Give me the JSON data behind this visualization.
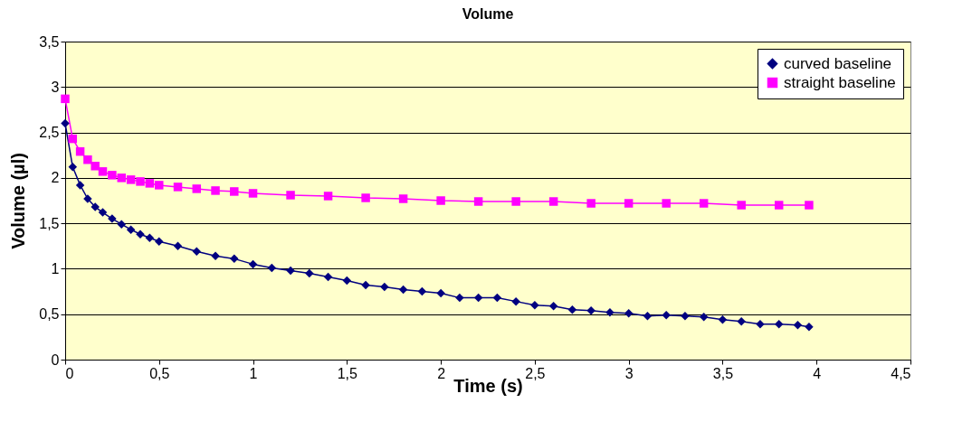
{
  "chart_data": {
    "type": "line",
    "title": "Volume",
    "xlabel": "Time (s)",
    "ylabel": "Volume (µl)",
    "xlim": [
      0,
      4.5
    ],
    "xticks": [
      0,
      {
        "value": 0.5,
        "label": "0,5"
      },
      1,
      {
        "value": 1.5,
        "label": "1,5"
      },
      2,
      {
        "value": 2.5,
        "label": "2,5"
      },
      3,
      {
        "value": 3.5,
        "label": "3,5"
      },
      4,
      {
        "value": 4.5,
        "label": "4,5"
      }
    ],
    "ylim": [
      0,
      3.5
    ],
    "yticks": [
      0,
      {
        "value": 0.5,
        "label": "0,5"
      },
      1,
      {
        "value": 1.5,
        "label": "1,5"
      },
      2,
      {
        "value": 2.5,
        "label": "2,5"
      },
      3,
      {
        "value": 3.5,
        "label": "3,5"
      }
    ],
    "grid": "y",
    "legend": "top right",
    "line_style": "solid",
    "series": [
      {
        "name": "curved baseline",
        "color": "#000080",
        "marker": "diamond",
        "x": [
          0,
          0.04,
          0.08,
          0.12,
          0.16,
          0.2,
          0.25,
          0.3,
          0.35,
          0.4,
          0.45,
          0.5,
          0.6,
          0.7,
          0.8,
          0.9,
          1.0,
          1.1,
          1.2,
          1.3,
          1.4,
          1.5,
          1.6,
          1.7,
          1.8,
          1.9,
          2.0,
          2.1,
          2.2,
          2.3,
          2.4,
          2.5,
          2.6,
          2.7,
          2.8,
          2.9,
          3.0,
          3.1,
          3.2,
          3.3,
          3.4,
          3.5,
          3.6,
          3.7,
          3.8,
          3.9,
          3.96
        ],
        "values": [
          2.6,
          2.12,
          1.92,
          1.77,
          1.68,
          1.62,
          1.55,
          1.49,
          1.43,
          1.38,
          1.34,
          1.3,
          1.25,
          1.19,
          1.14,
          1.11,
          1.05,
          1.01,
          0.98,
          0.95,
          0.91,
          0.87,
          0.82,
          0.8,
          0.77,
          0.75,
          0.73,
          0.68,
          0.68,
          0.68,
          0.64,
          0.6,
          0.59,
          0.55,
          0.54,
          0.52,
          0.51,
          0.48,
          0.49,
          0.48,
          0.47,
          0.44,
          0.42,
          0.39,
          0.39,
          0.38,
          0.36
        ]
      },
      {
        "name": "straight baseline",
        "color": "#ff00ff",
        "marker": "square",
        "x": [
          0,
          0.04,
          0.08,
          0.12,
          0.16,
          0.2,
          0.25,
          0.3,
          0.35,
          0.4,
          0.45,
          0.5,
          0.6,
          0.7,
          0.8,
          0.9,
          1.0,
          1.2,
          1.4,
          1.6,
          1.8,
          2.0,
          2.2,
          2.4,
          2.6,
          2.8,
          3.0,
          3.2,
          3.4,
          3.6,
          3.8,
          3.96
        ],
        "values": [
          2.87,
          2.43,
          2.29,
          2.2,
          2.13,
          2.07,
          2.03,
          2.0,
          1.98,
          1.96,
          1.94,
          1.92,
          1.9,
          1.88,
          1.86,
          1.85,
          1.83,
          1.81,
          1.8,
          1.78,
          1.77,
          1.75,
          1.74,
          1.74,
          1.74,
          1.72,
          1.72,
          1.72,
          1.72,
          1.7,
          1.7,
          1.7
        ]
      }
    ]
  }
}
